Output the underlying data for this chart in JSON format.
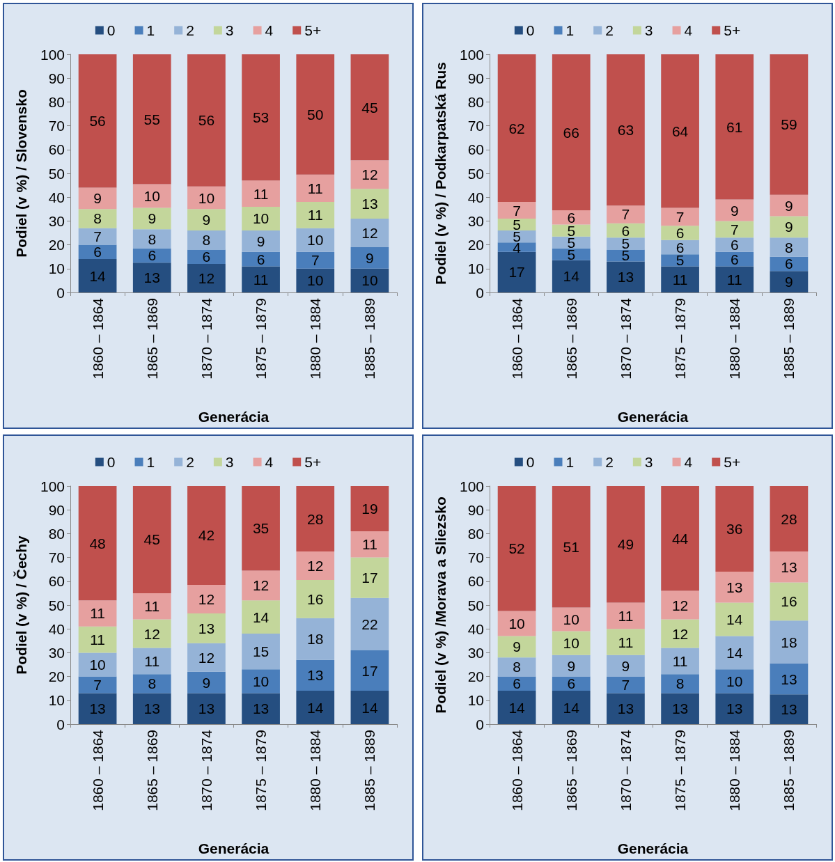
{
  "chart_data": [
    {
      "type": "bar",
      "stacked": true,
      "xlabel": "Generácia",
      "ylabel": "Podiel (v %) / Slovensko",
      "categories": [
        "1860 – 1864",
        "1865 – 1869",
        "1870 – 1874",
        "1875 – 1879",
        "1880 – 1884",
        "1885 – 1889"
      ],
      "ylim": [
        0,
        100
      ],
      "yticks": [
        0,
        10,
        20,
        30,
        40,
        50,
        60,
        70,
        80,
        90,
        100
      ],
      "legend": "top",
      "series": [
        {
          "name": "0",
          "color": "#254e80",
          "values": [
            14,
            12.5,
            12,
            11,
            10,
            10
          ],
          "value_labels": [
            "14",
            "13",
            "12",
            "11",
            "10",
            "10"
          ]
        },
        {
          "name": "1",
          "color": "#4a7ebb",
          "values": [
            6,
            6,
            6,
            6,
            7,
            9
          ],
          "value_labels": [
            "6",
            "6",
            "6",
            "6",
            "7",
            "9"
          ]
        },
        {
          "name": "2",
          "color": "#95b3d7",
          "values": [
            7,
            8,
            8,
            9,
            10,
            12
          ],
          "value_labels": [
            "7",
            "8",
            "8",
            "9",
            "10",
            "12"
          ]
        },
        {
          "name": "3",
          "color": "#c3d69b",
          "values": [
            8,
            9,
            9,
            10,
            11,
            12.5
          ],
          "value_labels": [
            "8",
            "9",
            "9",
            "10",
            "11",
            "13"
          ]
        },
        {
          "name": "4",
          "color": "#e6a09f",
          "values": [
            9,
            10,
            9.5,
            11,
            11.5,
            12
          ],
          "value_labels": [
            "9",
            "10",
            "10",
            "11",
            "11",
            "12"
          ]
        },
        {
          "name": "5+",
          "color": "#c0504d",
          "values": [
            56,
            54.5,
            55.5,
            53,
            50.5,
            44.5
          ],
          "value_labels": [
            "56",
            "55",
            "56",
            "53",
            "50",
            "45"
          ]
        }
      ]
    },
    {
      "type": "bar",
      "stacked": true,
      "xlabel": "Generácia",
      "ylabel": "Podiel (v %) / Podkarpatská Rus",
      "categories": [
        "1860 – 1864",
        "1865 – 1869",
        "1870 – 1874",
        "1875 – 1879",
        "1880 – 1884",
        "1885 – 1889"
      ],
      "ylim": [
        0,
        100
      ],
      "yticks": [
        0,
        10,
        20,
        30,
        40,
        50,
        60,
        70,
        80,
        90,
        100
      ],
      "legend": "top",
      "series": [
        {
          "name": "0",
          "color": "#254e80",
          "values": [
            17,
            13.5,
            13,
            11,
            11,
            9
          ],
          "value_labels": [
            "17",
            "14",
            "13",
            "11",
            "11",
            "9"
          ]
        },
        {
          "name": "1",
          "color": "#4a7ebb",
          "values": [
            4,
            5,
            5,
            5,
            6,
            6
          ],
          "value_labels": [
            "4",
            "5",
            "5",
            "5",
            "6",
            "6"
          ]
        },
        {
          "name": "2",
          "color": "#95b3d7",
          "values": [
            5,
            5,
            5,
            6,
            6,
            8
          ],
          "value_labels": [
            "5",
            "5",
            "5",
            "6",
            "6",
            "8"
          ]
        },
        {
          "name": "3",
          "color": "#c3d69b",
          "values": [
            5,
            5,
            6,
            6,
            7,
            9
          ],
          "value_labels": [
            "5",
            "5",
            "6",
            "6",
            "7",
            "9"
          ]
        },
        {
          "name": "4",
          "color": "#e6a09f",
          "values": [
            7,
            6,
            7.5,
            7.5,
            9,
            9
          ],
          "value_labels": [
            "7",
            "6",
            "7",
            "7",
            "9",
            "9"
          ]
        },
        {
          "name": "5+",
          "color": "#c0504d",
          "values": [
            62,
            65.5,
            63.5,
            64.5,
            61,
            59
          ],
          "value_labels": [
            "62",
            "66",
            "63",
            "64",
            "61",
            "59"
          ]
        }
      ]
    },
    {
      "type": "bar",
      "stacked": true,
      "xlabel": "Generácia",
      "ylabel": "Podiel (v %) / Čechy",
      "categories": [
        "1860 – 1864",
        "1865 – 1869",
        "1870 – 1874",
        "1875 – 1879",
        "1880 – 1884",
        "1885 – 1889"
      ],
      "ylim": [
        0,
        100
      ],
      "yticks": [
        0,
        10,
        20,
        30,
        40,
        50,
        60,
        70,
        80,
        90,
        100
      ],
      "legend": "top",
      "series": [
        {
          "name": "0",
          "color": "#254e80",
          "values": [
            13,
            13,
            13,
            13,
            14,
            14
          ],
          "value_labels": [
            "13",
            "13",
            "13",
            "13",
            "14",
            "14"
          ]
        },
        {
          "name": "1",
          "color": "#4a7ebb",
          "values": [
            7,
            8,
            9,
            10,
            13,
            17
          ],
          "value_labels": [
            "7",
            "8",
            "9",
            "10",
            "13",
            "17"
          ]
        },
        {
          "name": "2",
          "color": "#95b3d7",
          "values": [
            10,
            11,
            12,
            15,
            17.5,
            22
          ],
          "value_labels": [
            "10",
            "11",
            "12",
            "15",
            "18",
            "22"
          ]
        },
        {
          "name": "3",
          "color": "#c3d69b",
          "values": [
            11,
            12,
            12.5,
            14,
            16,
            17
          ],
          "value_labels": [
            "11",
            "12",
            "13",
            "14",
            "16",
            "17"
          ]
        },
        {
          "name": "4",
          "color": "#e6a09f",
          "values": [
            11,
            11,
            12,
            12.5,
            12,
            11
          ],
          "value_labels": [
            "11",
            "11",
            "12",
            "12",
            "12",
            "11"
          ]
        },
        {
          "name": "5+",
          "color": "#c0504d",
          "values": [
            48,
            45,
            41.5,
            35.5,
            27.5,
            19
          ],
          "value_labels": [
            "48",
            "45",
            "42",
            "35",
            "28",
            "19"
          ]
        }
      ]
    },
    {
      "type": "bar",
      "stacked": true,
      "xlabel": "Generácia",
      "ylabel": "Podiel (v %) /Morava a Sliezsko",
      "categories": [
        "1860 – 1864",
        "1865 – 1869",
        "1870 – 1874",
        "1875 – 1879",
        "1880 – 1884",
        "1885 – 1889"
      ],
      "ylim": [
        0,
        100
      ],
      "yticks": [
        0,
        10,
        20,
        30,
        40,
        50,
        60,
        70,
        80,
        90,
        100
      ],
      "legend": "top",
      "series": [
        {
          "name": "0",
          "color": "#254e80",
          "values": [
            14,
            14,
            13,
            13,
            13,
            12.5
          ],
          "value_labels": [
            "14",
            "14",
            "13",
            "13",
            "13",
            "13"
          ]
        },
        {
          "name": "1",
          "color": "#4a7ebb",
          "values": [
            6,
            6,
            7,
            8,
            10,
            13
          ],
          "value_labels": [
            "6",
            "6",
            "7",
            "8",
            "10",
            "13"
          ]
        },
        {
          "name": "2",
          "color": "#95b3d7",
          "values": [
            8,
            9,
            9,
            11,
            14,
            18
          ],
          "value_labels": [
            "8",
            "9",
            "9",
            "11",
            "14",
            "18"
          ]
        },
        {
          "name": "3",
          "color": "#c3d69b",
          "values": [
            9,
            10,
            11,
            12,
            14,
            16
          ],
          "value_labels": [
            "9",
            "10",
            "11",
            "12",
            "14",
            "16"
          ]
        },
        {
          "name": "4",
          "color": "#e6a09f",
          "values": [
            10.5,
            10,
            11,
            12,
            13,
            13
          ],
          "value_labels": [
            "10",
            "10",
            "11",
            "12",
            "13",
            "13"
          ]
        },
        {
          "name": "5+",
          "color": "#c0504d",
          "values": [
            52.5,
            51,
            49,
            44,
            36,
            27.5
          ],
          "value_labels": [
            "52",
            "51",
            "49",
            "44",
            "36",
            "28"
          ]
        }
      ]
    }
  ]
}
